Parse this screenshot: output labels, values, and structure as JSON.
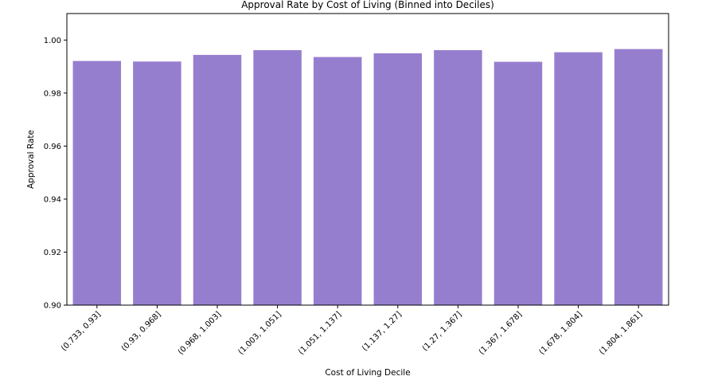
{
  "chart_data": {
    "type": "bar",
    "title": "Approval Rate by Cost of Living (Binned into Deciles)",
    "xlabel": "Cost of Living Decile",
    "ylabel": "Approval Rate",
    "categories": [
      "(0.733, 0.93]",
      "(0.93, 0.968]",
      "(0.968, 1.003]",
      "(1.003, 1.051]",
      "(1.051, 1.137]",
      "(1.137, 1.27]",
      "(1.27, 1.367]",
      "(1.367, 1.678]",
      "(1.678, 1.804]",
      "(1.804, 1.861]"
    ],
    "values": [
      0.9921,
      0.9919,
      0.9944,
      0.9962,
      0.9936,
      0.995,
      0.9962,
      0.9918,
      0.9954,
      0.9966
    ],
    "ylim": [
      0.9,
      1.01
    ],
    "yticks": [
      "0.90",
      "0.92",
      "0.94",
      "0.96",
      "0.98",
      "1.00"
    ],
    "grid": false,
    "bar_color": "#967ecf"
  }
}
